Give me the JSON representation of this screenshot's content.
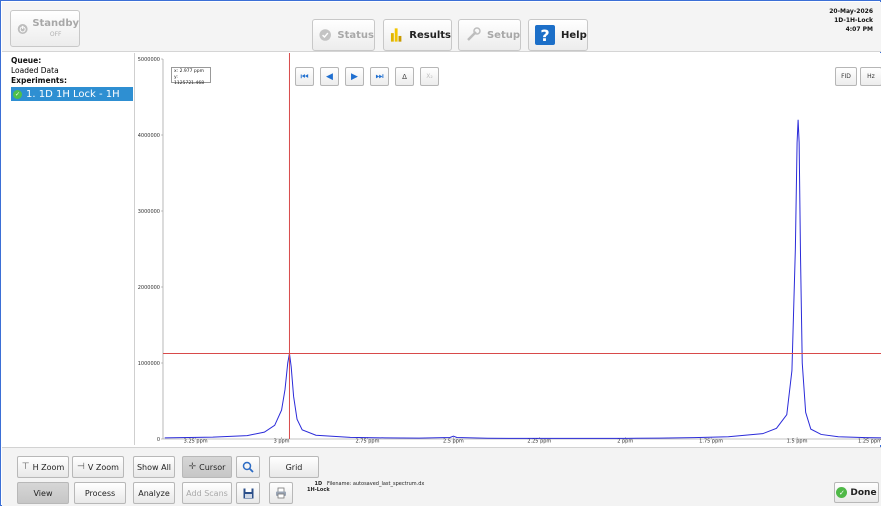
{
  "topbar": {
    "standby": {
      "label": "Standby",
      "sub": "OFF"
    },
    "tabs": [
      {
        "id": "status",
        "label": "Status",
        "enabled": false
      },
      {
        "id": "results",
        "label": "Results",
        "enabled": true
      },
      {
        "id": "setup",
        "label": "Setup",
        "enabled": false
      },
      {
        "id": "help",
        "label": "Help",
        "enabled": true
      }
    ],
    "date": "20-May-2026",
    "experiment": "1D-1H-Lock",
    "time": "4:07 PM"
  },
  "sidebar": {
    "queue_label": "Queue:",
    "loaded_label": "Loaded Data",
    "experiments_label": "Experiments:",
    "selected_experiment": "1. 1D 1H Lock - 1H"
  },
  "plot": {
    "cursor_readout": {
      "x": "x: 2.977 ppm",
      "y": "y: 1125721.468"
    },
    "nav_buttons": [
      {
        "name": "first",
        "glyph": "⏮"
      },
      {
        "name": "prev",
        "glyph": "◀"
      },
      {
        "name": "next",
        "glyph": "▶"
      },
      {
        "name": "last",
        "glyph": "⏭"
      },
      {
        "name": "delta",
        "glyph": "Δ"
      },
      {
        "name": "x-sub",
        "glyph": "X₂"
      }
    ],
    "mode_buttons": [
      "FID",
      "Hz"
    ]
  },
  "chart_data": {
    "type": "line",
    "title": "",
    "xlabel": "",
    "ylabel": "",
    "x_unit": "ppm",
    "xlim": [
      3.345,
      1.25
    ],
    "ylim": [
      0,
      5000000
    ],
    "x_ticks": [
      "3.25 ppm",
      "3 ppm",
      "2.75 ppm",
      "2.5 ppm",
      "2.25 ppm",
      "2 ppm",
      "1.75 ppm",
      "1.5 ppm",
      "1.25 ppm"
    ],
    "x_tick_values": [
      3.25,
      3.0,
      2.75,
      2.5,
      2.25,
      2.0,
      1.75,
      1.5,
      1.25
    ],
    "y_ticks": [
      "0",
      "1000000",
      "2000000",
      "3000000",
      "4000000",
      "5000000"
    ],
    "y_tick_values": [
      0,
      1000000,
      2000000,
      3000000,
      4000000,
      5000000
    ],
    "grid": false,
    "series": [
      {
        "color": "#2b2bd9",
        "x": [
          3.34,
          3.2,
          3.1,
          3.05,
          3.02,
          3.0,
          2.99,
          2.982,
          2.977,
          2.972,
          2.965,
          2.955,
          2.94,
          2.9,
          2.8,
          2.7,
          2.6,
          2.51,
          2.5,
          2.49,
          2.4,
          2.3,
          2.2,
          2.1,
          2.0,
          1.9,
          1.8,
          1.7,
          1.6,
          1.56,
          1.53,
          1.515,
          1.505,
          1.5,
          1.497,
          1.494,
          1.49,
          1.485,
          1.475,
          1.46,
          1.43,
          1.38,
          1.3,
          1.25
        ],
        "y": [
          15000,
          25000,
          45000,
          90000,
          180000,
          380000,
          650000,
          1000000,
          1125000,
          950000,
          560000,
          260000,
          120000,
          50000,
          22000,
          15000,
          12000,
          20000,
          38000,
          20000,
          10000,
          8000,
          8000,
          8000,
          9000,
          12000,
          18000,
          30000,
          70000,
          140000,
          320000,
          900000,
          2500000,
          3900000,
          4200000,
          3900000,
          2400000,
          1000000,
          350000,
          130000,
          60000,
          30000,
          18000,
          15000
        ]
      }
    ],
    "cursor": {
      "x": 2.977,
      "y": 1125721.468,
      "color": "#d84a4a"
    }
  },
  "toolbar1": {
    "hzoom": "H Zoom",
    "vzoom": "V Zoom",
    "showall": "Show All",
    "cursor": "Cursor",
    "grid": "Grid"
  },
  "toolbar2": {
    "view": "View",
    "process": "Process",
    "analyze": "Analyze",
    "addscans": "Add Scans",
    "file_dim": "1D",
    "file_nuc": "1H-Lock",
    "filename": "Filename:  autosaved_last_spectrum.dx",
    "done": "Done"
  },
  "colors": {
    "accent": "#2e8fd2",
    "cursor": "#d84a4a",
    "trace": "#2b2bd9",
    "done_ok": "#4fb847"
  }
}
